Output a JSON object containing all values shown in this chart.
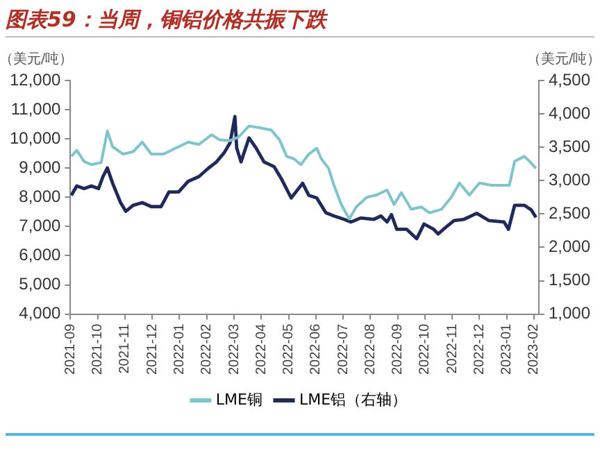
{
  "chart_data": {
    "type": "line",
    "title": "图表59：当周，铜铝价格共振下跌",
    "ylabel": "（美元/吨）",
    "y2label": "（美元/吨）",
    "xlim": [
      "2021-09-01",
      "2023-02-06"
    ],
    "xticks": [
      "2021-09",
      "2021-10",
      "2021-11",
      "2021-12",
      "2022-01",
      "2022-02",
      "2022-03",
      "2022-04",
      "2022-05",
      "2022-06",
      "2022-07",
      "2022-08",
      "2022-09",
      "2022-10",
      "2022-11",
      "2022-12",
      "2023-01",
      "2023-02"
    ],
    "ylim": [
      4000,
      12000
    ],
    "yticks": [
      {
        "value": 4000,
        "label": "4,000"
      },
      {
        "value": 5000,
        "label": "5,000"
      },
      {
        "value": 6000,
        "label": "6,000"
      },
      {
        "value": 7000,
        "label": "7,000"
      },
      {
        "value": 8000,
        "label": "8,000"
      },
      {
        "value": 9000,
        "label": "9,000"
      },
      {
        "value": 10000,
        "label": "10,000"
      },
      {
        "value": 11000,
        "label": "11,000"
      },
      {
        "value": 12000,
        "label": "12,000"
      }
    ],
    "y2lim": [
      1000,
      4500
    ],
    "y2ticks": [
      {
        "value": 1000,
        "label": "1,000"
      },
      {
        "value": 1500,
        "label": "1,500"
      },
      {
        "value": 2000,
        "label": "2,000"
      },
      {
        "value": 2500,
        "label": "2,500"
      },
      {
        "value": 3000,
        "label": "3,000"
      },
      {
        "value": 3500,
        "label": "3,500"
      },
      {
        "value": 4000,
        "label": "4,000"
      },
      {
        "value": 4500,
        "label": "4,500"
      }
    ],
    "grid": false,
    "legend": "bottom",
    "marker": "none",
    "line_style": "solid",
    "series": [
      {
        "name": "LME铜",
        "color": "#7fc4cc",
        "x": [
          "2021-09-02",
          "2021-09-08",
          "2021-09-16",
          "2021-09-24",
          "2021-10-05",
          "2021-10-12",
          "2021-10-18",
          "2021-10-30",
          "2021-11-10",
          "2021-11-20",
          "2021-11-30",
          "2021-12-14",
          "2021-12-31",
          "2022-01-11",
          "2022-01-23",
          "2022-02-06",
          "2022-02-14",
          "2022-02-25",
          "2022-03-06",
          "2022-03-18",
          "2022-03-29",
          "2022-04-12",
          "2022-04-21",
          "2022-04-29",
          "2022-05-07",
          "2022-05-15",
          "2022-05-24",
          "2022-06-02",
          "2022-06-07",
          "2022-06-15",
          "2022-06-21",
          "2022-06-29",
          "2022-07-08",
          "2022-07-16",
          "2022-07-28",
          "2022-08-08",
          "2022-08-20",
          "2022-08-28",
          "2022-09-05",
          "2022-09-16",
          "2022-09-27",
          "2022-10-06",
          "2022-10-20",
          "2022-10-31",
          "2022-11-09",
          "2022-11-20",
          "2022-12-01",
          "2022-12-15",
          "2022-12-29",
          "2023-01-04",
          "2023-01-10",
          "2023-01-21",
          "2023-01-27",
          "2023-02-03"
        ],
        "values": [
          9400,
          9610,
          9230,
          9120,
          9190,
          10270,
          9730,
          9480,
          9560,
          9890,
          9480,
          9480,
          9730,
          9890,
          9810,
          10140,
          9970,
          9940,
          10060,
          10440,
          10390,
          10300,
          9970,
          9400,
          9320,
          9120,
          9480,
          9680,
          9320,
          8990,
          8410,
          7750,
          7260,
          7670,
          8000,
          8080,
          8250,
          7750,
          8160,
          7590,
          7670,
          7470,
          7590,
          8000,
          8490,
          8080,
          8490,
          8410,
          8410,
          8410,
          9230,
          9400,
          9230,
          8990
        ]
      },
      {
        "name": "LME铝（右轴）",
        "color": "#1f2a5a",
        "axis": "y2",
        "x": [
          "2021-09-02",
          "2021-09-08",
          "2021-09-16",
          "2021-09-24",
          "2021-10-02",
          "2021-10-07",
          "2021-10-12",
          "2021-10-18",
          "2021-10-27",
          "2021-11-02",
          "2021-11-10",
          "2021-11-20",
          "2021-11-30",
          "2021-12-11",
          "2021-12-20",
          "2021-12-31",
          "2022-01-11",
          "2022-01-23",
          "2022-02-03",
          "2022-02-11",
          "2022-02-19",
          "2022-02-25",
          "2022-03-02",
          "2022-03-04",
          "2022-03-09",
          "2022-03-18",
          "2022-03-26",
          "2022-04-04",
          "2022-04-15",
          "2022-04-23",
          "2022-05-04",
          "2022-05-17",
          "2022-05-24",
          "2022-06-02",
          "2022-06-12",
          "2022-06-21",
          "2022-07-02",
          "2022-07-10",
          "2022-07-21",
          "2022-08-05",
          "2022-08-13",
          "2022-08-20",
          "2022-08-25",
          "2022-08-31",
          "2022-09-11",
          "2022-09-22",
          "2022-09-30",
          "2022-10-11",
          "2022-10-16",
          "2022-10-22",
          "2022-11-03",
          "2022-11-14",
          "2022-11-28",
          "2022-12-12",
          "2022-12-29",
          "2023-01-03",
          "2023-01-10",
          "2023-01-21",
          "2023-01-29",
          "2023-02-03"
        ],
        "values": [
          2780,
          2920,
          2880,
          2920,
          2880,
          3060,
          3190,
          2960,
          2670,
          2540,
          2630,
          2670,
          2610,
          2610,
          2830,
          2830,
          2990,
          3060,
          3190,
          3280,
          3420,
          3570,
          3960,
          3490,
          3280,
          3640,
          3490,
          3280,
          3210,
          3030,
          2740,
          2960,
          2780,
          2740,
          2520,
          2470,
          2420,
          2380,
          2440,
          2420,
          2470,
          2380,
          2490,
          2270,
          2270,
          2130,
          2350,
          2270,
          2200,
          2270,
          2400,
          2420,
          2510,
          2400,
          2380,
          2270,
          2630,
          2630,
          2560,
          2450
        ]
      }
    ]
  }
}
